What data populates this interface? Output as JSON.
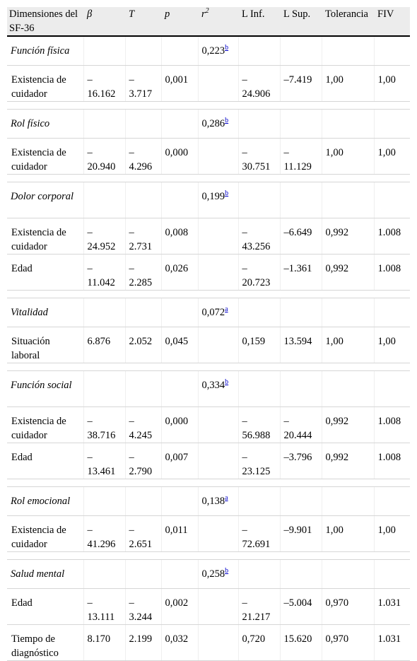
{
  "header": {
    "dimension": "Dimensiones del SF-36",
    "beta": "β",
    "t": "T",
    "p": "p",
    "r2_base": "r",
    "r2_exp": "2",
    "linf": "L Inf.",
    "lsup": "L Sup.",
    "tolerancia": "Tolerancia",
    "fiv": "FIV"
  },
  "groups": [
    {
      "name": "Función física",
      "r2": "0,223",
      "note": "b",
      "rows": [
        {
          "label": "Existencia de cuidador",
          "beta": "– 16.162",
          "t": "– 3.717",
          "p": "0,001",
          "linf": "– 24.906",
          "lsup": "–7.419",
          "tol": "1,00",
          "fiv": "1,00"
        }
      ]
    },
    {
      "name": "Rol físico",
      "r2": "0,286",
      "note": "b",
      "rows": [
        {
          "label": "Existencia de cuidador",
          "beta": "– 20.940",
          "t": "– 4.296",
          "p": "0,000",
          "linf": "– 30.751",
          "lsup": "– 11.129",
          "tol": "1,00",
          "fiv": "1,00"
        }
      ]
    },
    {
      "name": "Dolor corporal",
      "r2": "0,199",
      "note": "b",
      "rows": [
        {
          "label": "Existencia de cuidador",
          "beta": "– 24.952",
          "t": "– 2.731",
          "p": "0,008",
          "linf": "– 43.256",
          "lsup": "–6.649",
          "tol": "0,992",
          "fiv": "1.008"
        },
        {
          "label": "Edad",
          "beta": "– 11.042",
          "t": "– 2.285",
          "p": "0,026",
          "linf": "– 20.723",
          "lsup": "–1.361",
          "tol": "0,992",
          "fiv": "1.008"
        }
      ]
    },
    {
      "name": "Vitalidad",
      "r2": "0,072",
      "note": "a",
      "rows": [
        {
          "label": "Situación laboral",
          "beta": "6.876",
          "t": "2.052",
          "p": "0,045",
          "linf": "0,159",
          "lsup": "13.594",
          "tol": "1,00",
          "fiv": "1,00"
        }
      ]
    },
    {
      "name": "Función social",
      "r2": "0,334",
      "note": "b",
      "rows": [
        {
          "label": "Existencia de cuidador",
          "beta": "– 38.716",
          "t": "– 4.245",
          "p": "0,000",
          "linf": "– 56.988",
          "lsup": "– 20.444",
          "tol": "0,992",
          "fiv": "1.008"
        },
        {
          "label": "Edad",
          "beta": "– 13.461",
          "t": "– 2.790",
          "p": "0,007",
          "linf": "– 23.125",
          "lsup": "–3.796",
          "tol": "0,992",
          "fiv": "1.008"
        }
      ]
    },
    {
      "name": "Rol emocional",
      "r2": "0,138",
      "note": "a",
      "rows": [
        {
          "label": "Existencia de cuidador",
          "beta": "– 41.296",
          "t": "– 2.651",
          "p": "0,011",
          "linf": "– 72.691",
          "lsup": "–9.901",
          "tol": "1,00",
          "fiv": "1,00"
        }
      ]
    },
    {
      "name": "Salud mental",
      "r2": "0,258",
      "note": "b",
      "rows": [
        {
          "label": "Edad",
          "beta": "– 13.111",
          "t": "– 3.244",
          "p": "0,002",
          "linf": "– 21.217",
          "lsup": "–5.004",
          "tol": "0,970",
          "fiv": "1.031"
        },
        {
          "label": "Tiempo de diagnóstico",
          "beta": "8.170",
          "t": "2.199",
          "p": "0,032",
          "linf": "0,720",
          "lsup": "15.620",
          "tol": "0,970",
          "fiv": "1.031"
        }
      ]
    }
  ],
  "colors": {
    "header_bg": "#ececec",
    "link": "#0000cc",
    "rule": "#d6d6d6"
  }
}
